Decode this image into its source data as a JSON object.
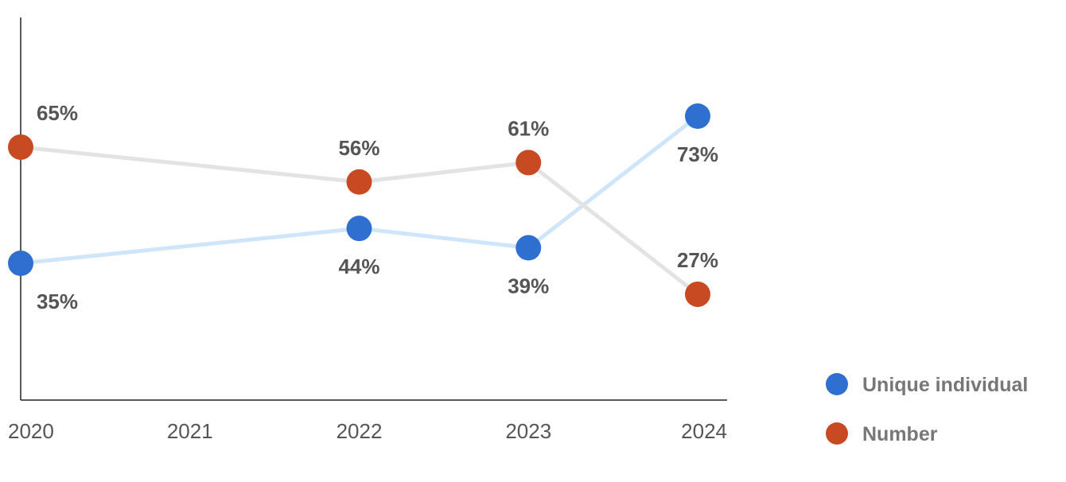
{
  "chart_data": {
    "type": "line",
    "title": "",
    "xlabel": "",
    "ylabel": "",
    "x": [
      "2020",
      "2021",
      "2022",
      "2023",
      "2024"
    ],
    "ylim": [
      0,
      100
    ],
    "grid": false,
    "legend_position": "bottom-right",
    "series": [
      {
        "name": "Unique individual",
        "color": "#2f6fd0",
        "line_color": "#cfe6fa",
        "label_position": "below",
        "points": [
          {
            "x": "2020",
            "y": 35,
            "label": "35%"
          },
          {
            "x": "2022",
            "y": 44,
            "label": "44%"
          },
          {
            "x": "2023",
            "y": 39,
            "label": "39%"
          },
          {
            "x": "2024",
            "y": 73,
            "label": "73%"
          }
        ]
      },
      {
        "name": "Number",
        "color": "#c84a22",
        "line_color": "#e3e3e3",
        "label_position": "above",
        "points": [
          {
            "x": "2020",
            "y": 65,
            "label": "65%"
          },
          {
            "x": "2022",
            "y": 56,
            "label": "56%"
          },
          {
            "x": "2023",
            "y": 61,
            "label": "61%"
          },
          {
            "x": "2024",
            "y": 27,
            "label": "27%"
          }
        ]
      }
    ]
  }
}
